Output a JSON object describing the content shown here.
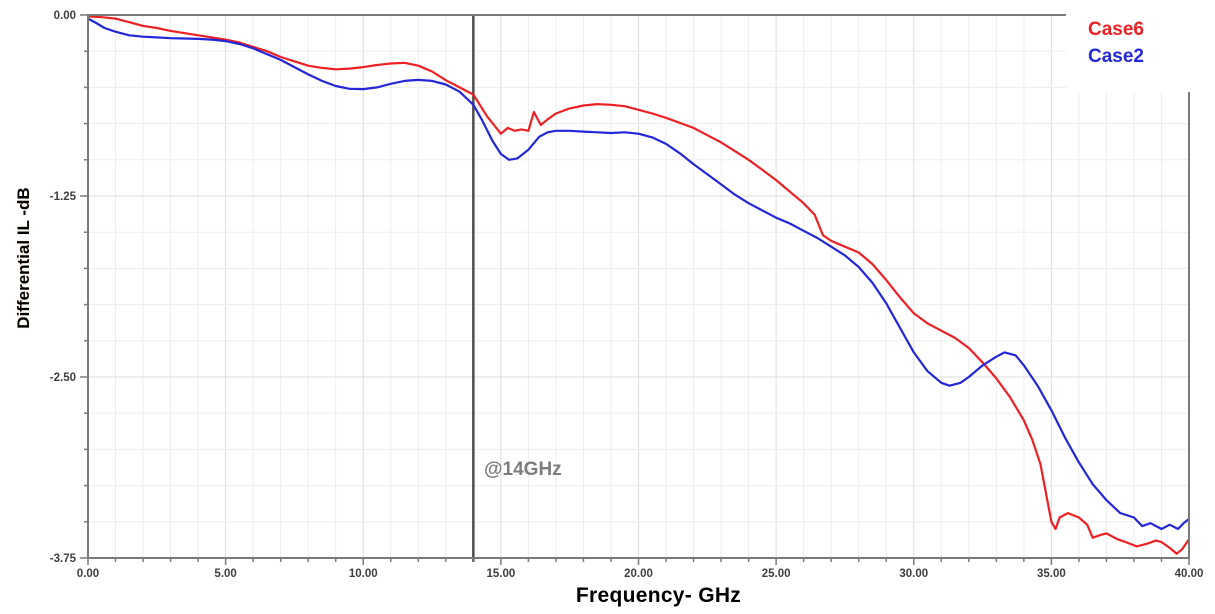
{
  "chart_data": {
    "type": "line",
    "title": "",
    "xlabel": "Frequency- GHz",
    "ylabel": "Differential IL -dB",
    "xlim": [
      0,
      40
    ],
    "ylim": [
      -3.75,
      0
    ],
    "grid": true,
    "legend_position": "top-right",
    "x_major_ticks": [
      0,
      5,
      10,
      15,
      20,
      25,
      30,
      35,
      40
    ],
    "x_tick_labels": [
      "0.00",
      "5.00",
      "10.00",
      "15.00",
      "20.00",
      "25.00",
      "30.00",
      "35.00",
      "40.00"
    ],
    "x_minor_step": 1,
    "y_major_ticks": [
      0,
      -1.25,
      -2.5,
      -3.75
    ],
    "y_tick_labels": [
      "0.00",
      "-1.25",
      "-2.50",
      "-3.75"
    ],
    "y_minor_step": 0.25,
    "marker_line_x": 14,
    "annotation": {
      "text": "@14GHz",
      "x": 14,
      "y": -3.1
    },
    "colors": {
      "grid_minor": "#ededed",
      "grid_major": "#dedede",
      "axis": "#7a7a7a",
      "marker_line": "#4d4d4d",
      "tick_label": "#3f3f3f",
      "annotation": "#7d7d7d"
    },
    "series": [
      {
        "name": "Case6",
        "color": "#ed2024",
        "points": [
          [
            0,
            -0.01
          ],
          [
            0.5,
            -0.015
          ],
          [
            1,
            -0.025
          ],
          [
            1.5,
            -0.05
          ],
          [
            2,
            -0.075
          ],
          [
            2.5,
            -0.09
          ],
          [
            3,
            -0.11
          ],
          [
            3.5,
            -0.125
          ],
          [
            4,
            -0.14
          ],
          [
            4.5,
            -0.155
          ],
          [
            5,
            -0.17
          ],
          [
            5.5,
            -0.19
          ],
          [
            6,
            -0.22
          ],
          [
            6.5,
            -0.25
          ],
          [
            7,
            -0.29
          ],
          [
            7.5,
            -0.32
          ],
          [
            8,
            -0.35
          ],
          [
            8.5,
            -0.365
          ],
          [
            9,
            -0.375
          ],
          [
            9.5,
            -0.37
          ],
          [
            10,
            -0.36
          ],
          [
            10.5,
            -0.345
          ],
          [
            11,
            -0.335
          ],
          [
            11.5,
            -0.33
          ],
          [
            12,
            -0.35
          ],
          [
            12.5,
            -0.39
          ],
          [
            13,
            -0.45
          ],
          [
            13.5,
            -0.5
          ],
          [
            14,
            -0.55
          ],
          [
            14.5,
            -0.7
          ],
          [
            15,
            -0.82
          ],
          [
            15.25,
            -0.78
          ],
          [
            15.5,
            -0.8
          ],
          [
            15.75,
            -0.79
          ],
          [
            16,
            -0.8
          ],
          [
            16.2,
            -0.67
          ],
          [
            16.45,
            -0.76
          ],
          [
            16.7,
            -0.72
          ],
          [
            17,
            -0.68
          ],
          [
            17.5,
            -0.645
          ],
          [
            18,
            -0.625
          ],
          [
            18.5,
            -0.615
          ],
          [
            19,
            -0.62
          ],
          [
            19.5,
            -0.63
          ],
          [
            20,
            -0.655
          ],
          [
            20.5,
            -0.68
          ],
          [
            21,
            -0.71
          ],
          [
            21.5,
            -0.745
          ],
          [
            22,
            -0.78
          ],
          [
            22.5,
            -0.83
          ],
          [
            23,
            -0.88
          ],
          [
            23.5,
            -0.94
          ],
          [
            24,
            -1.0
          ],
          [
            24.5,
            -1.07
          ],
          [
            25,
            -1.14
          ],
          [
            25.5,
            -1.22
          ],
          [
            26,
            -1.3
          ],
          [
            26.4,
            -1.38
          ],
          [
            26.7,
            -1.52
          ],
          [
            27,
            -1.56
          ],
          [
            27.5,
            -1.6
          ],
          [
            28,
            -1.64
          ],
          [
            28.5,
            -1.72
          ],
          [
            29,
            -1.83
          ],
          [
            29.5,
            -1.95
          ],
          [
            30,
            -2.06
          ],
          [
            30.5,
            -2.13
          ],
          [
            31,
            -2.18
          ],
          [
            31.5,
            -2.23
          ],
          [
            32,
            -2.3
          ],
          [
            32.5,
            -2.4
          ],
          [
            33,
            -2.51
          ],
          [
            33.5,
            -2.64
          ],
          [
            34,
            -2.8
          ],
          [
            34.3,
            -2.93
          ],
          [
            34.6,
            -3.1
          ],
          [
            34.8,
            -3.3
          ],
          [
            35,
            -3.5
          ],
          [
            35.15,
            -3.55
          ],
          [
            35.3,
            -3.47
          ],
          [
            35.6,
            -3.44
          ],
          [
            36,
            -3.47
          ],
          [
            36.3,
            -3.52
          ],
          [
            36.5,
            -3.61
          ],
          [
            36.8,
            -3.59
          ],
          [
            37,
            -3.58
          ],
          [
            37.4,
            -3.62
          ],
          [
            37.7,
            -3.64
          ],
          [
            38.1,
            -3.67
          ],
          [
            38.5,
            -3.65
          ],
          [
            38.8,
            -3.63
          ],
          [
            39,
            -3.64
          ],
          [
            39.3,
            -3.68
          ],
          [
            39.55,
            -3.72
          ],
          [
            39.75,
            -3.69
          ],
          [
            40,
            -3.62
          ]
        ]
      },
      {
        "name": "Case2",
        "color": "#2427d8",
        "points": [
          [
            0,
            -0.025
          ],
          [
            0.3,
            -0.055
          ],
          [
            0.6,
            -0.09
          ],
          [
            1,
            -0.115
          ],
          [
            1.5,
            -0.14
          ],
          [
            2,
            -0.15
          ],
          [
            2.5,
            -0.155
          ],
          [
            3,
            -0.16
          ],
          [
            3.5,
            -0.162
          ],
          [
            4,
            -0.165
          ],
          [
            4.5,
            -0.17
          ],
          [
            5,
            -0.18
          ],
          [
            5.5,
            -0.2
          ],
          [
            6,
            -0.23
          ],
          [
            6.5,
            -0.27
          ],
          [
            7,
            -0.31
          ],
          [
            7.5,
            -0.36
          ],
          [
            8,
            -0.41
          ],
          [
            8.5,
            -0.455
          ],
          [
            9,
            -0.49
          ],
          [
            9.5,
            -0.51
          ],
          [
            10,
            -0.512
          ],
          [
            10.5,
            -0.5
          ],
          [
            11,
            -0.475
          ],
          [
            11.5,
            -0.455
          ],
          [
            12,
            -0.448
          ],
          [
            12.5,
            -0.455
          ],
          [
            13,
            -0.48
          ],
          [
            13.5,
            -0.53
          ],
          [
            14,
            -0.62
          ],
          [
            14.3,
            -0.72
          ],
          [
            14.7,
            -0.87
          ],
          [
            15,
            -0.96
          ],
          [
            15.3,
            -1.0
          ],
          [
            15.6,
            -0.99
          ],
          [
            16,
            -0.93
          ],
          [
            16.4,
            -0.84
          ],
          [
            16.7,
            -0.81
          ],
          [
            17,
            -0.8
          ],
          [
            17.5,
            -0.8
          ],
          [
            18,
            -0.805
          ],
          [
            18.5,
            -0.81
          ],
          [
            19,
            -0.815
          ],
          [
            19.5,
            -0.81
          ],
          [
            20,
            -0.82
          ],
          [
            20.5,
            -0.845
          ],
          [
            21,
            -0.89
          ],
          [
            21.5,
            -0.955
          ],
          [
            22,
            -1.03
          ],
          [
            22.5,
            -1.1
          ],
          [
            23,
            -1.17
          ],
          [
            23.5,
            -1.24
          ],
          [
            24,
            -1.3
          ],
          [
            24.5,
            -1.35
          ],
          [
            25,
            -1.4
          ],
          [
            25.5,
            -1.44
          ],
          [
            26,
            -1.49
          ],
          [
            26.5,
            -1.54
          ],
          [
            27,
            -1.6
          ],
          [
            27.5,
            -1.66
          ],
          [
            28,
            -1.74
          ],
          [
            28.5,
            -1.85
          ],
          [
            29,
            -1.99
          ],
          [
            29.5,
            -2.16
          ],
          [
            30,
            -2.33
          ],
          [
            30.5,
            -2.46
          ],
          [
            31,
            -2.54
          ],
          [
            31.3,
            -2.56
          ],
          [
            31.7,
            -2.54
          ],
          [
            32,
            -2.5
          ],
          [
            32.5,
            -2.42
          ],
          [
            33,
            -2.36
          ],
          [
            33.3,
            -2.33
          ],
          [
            33.7,
            -2.35
          ],
          [
            34,
            -2.42
          ],
          [
            34.5,
            -2.56
          ],
          [
            35,
            -2.73
          ],
          [
            35.5,
            -2.92
          ],
          [
            36,
            -3.09
          ],
          [
            36.5,
            -3.24
          ],
          [
            37,
            -3.35
          ],
          [
            37.5,
            -3.44
          ],
          [
            38,
            -3.47
          ],
          [
            38.3,
            -3.53
          ],
          [
            38.6,
            -3.51
          ],
          [
            39,
            -3.55
          ],
          [
            39.3,
            -3.52
          ],
          [
            39.6,
            -3.55
          ],
          [
            39.8,
            -3.51
          ],
          [
            40,
            -3.48
          ]
        ]
      }
    ]
  },
  "legend": {
    "items": [
      {
        "label": "Case6",
        "color": "#ed2024"
      },
      {
        "label": "Case2",
        "color": "#2427d8"
      }
    ]
  }
}
